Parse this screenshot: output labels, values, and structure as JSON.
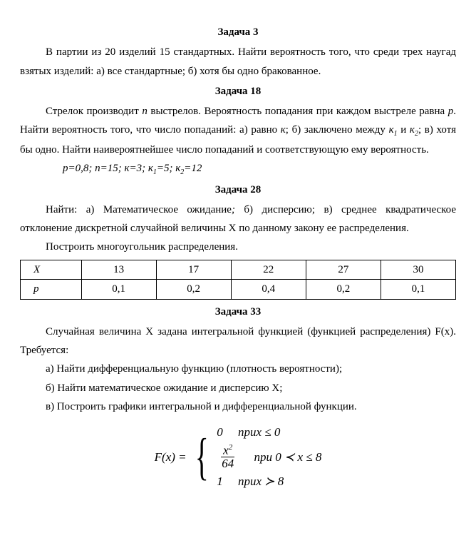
{
  "sections": {
    "s1": {
      "title": "Задача 3"
    },
    "s2": {
      "title": "Задача 18"
    },
    "s3": {
      "title": "Задача 28"
    },
    "s4": {
      "title": "Задача 33"
    }
  },
  "p": {
    "t1": "В партии из 20 изделий 15 стандартных. Найти вероятность того, что среди трех наугад взятых изделий: а) все стандартные; б) хотя бы одно бракованное.",
    "t2a": "Стрелок производит ",
    "t2b": "  выстрелов. Вероятность попадания при каждом выстреле равна ",
    "t2c": ". Найти вероятность того, что число попаданий: а) равно ",
    "t2d": "; б) заключено между ",
    "t2e": " и ",
    "t2f": "; в) хотя бы одно. Найти наивероятнейшее число попаданий и соответствующую ему вероятность.",
    "t2params": "р=0,8;   n=15;  к=3;   к",
    "t2sub1": "1",
    "t2mid": "=5;   к",
    "t2sub2": "2",
    "t2end": "=12",
    "t3a": "Найти: а) Математическое ожидание",
    "t3b": " б) дисперсию; в) среднее квадратическое отклонение дискретной случайной величины Х по данному закону ее распределения.",
    "t3c": "Построить многоугольник распределения.",
    "t4a": "Случайная величина Х задана интегральной функцией (функцией распределения) F(x). Требуется:",
    "t4b": "а) Найти дифференциальную функцию (плотность вероятности);",
    "t4c": "б) Найти математическое ожидание и дисперсию Х;",
    "t4d": "в) Построить графики интегральной  и дифференциальной функции."
  },
  "vars": {
    "n": "n",
    "p": "р",
    "k": "к",
    "k1": "к",
    "k2": "к",
    "sub1": "1",
    "sub2": "2"
  },
  "table": {
    "row1label": "Х",
    "row2label": "р",
    "x": [
      "13",
      "17",
      "22",
      "27",
      "30"
    ],
    "pv": [
      "0,1",
      "0,2",
      "0,4",
      "0,2",
      "0,1"
    ]
  },
  "math": {
    "lhs": "F(x) = ",
    "line1": "0     npux ≤ 0",
    "frac_num": "x",
    "frac_exp": "2",
    "frac_den": "64",
    "line2_cond": "     npu 0 ≺ x ≤ 8",
    "line3": "1     npux ≻ 8"
  }
}
